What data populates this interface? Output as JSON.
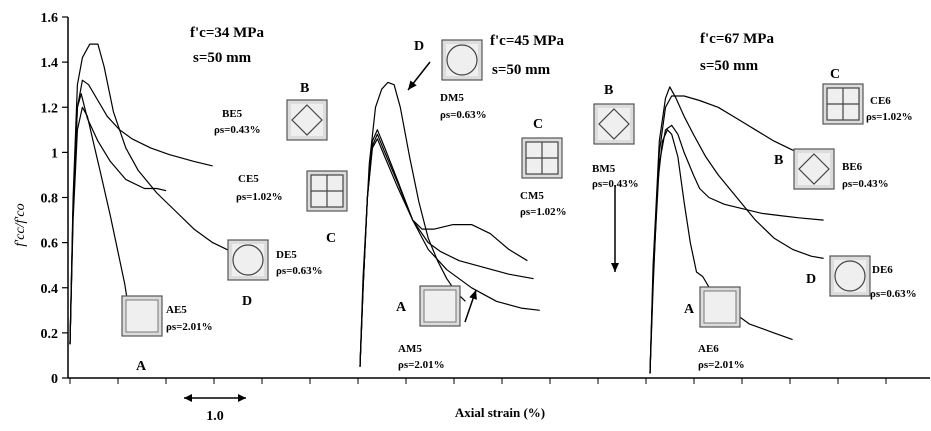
{
  "chart_data": {
    "type": "line",
    "ylabel": "f'cc/f'co",
    "xlabel": "Axial strain (%)",
    "ylim": [
      0,
      1.6
    ],
    "yticks": [
      "0",
      "0.2",
      "0.4",
      "0.6",
      "0.8",
      "1",
      "1.2",
      "1.4",
      "1.6"
    ],
    "scale_label": "1.0",
    "grid": false,
    "legend": "none",
    "panels": [
      {
        "title": "f'c=34 MPa",
        "subtitle": "s=50 mm",
        "series": [
          {
            "letter": "A",
            "name": "AE5",
            "ratio": "ρs=2.01%",
            "points": [
              [
                0,
                0.15
              ],
              [
                0.05,
                0.7
              ],
              [
                0.12,
                1.1
              ],
              [
                0.2,
                1.2
              ],
              [
                0.28,
                1.16
              ],
              [
                0.38,
                1.04
              ],
              [
                0.5,
                0.9
              ],
              [
                0.65,
                0.72
              ],
              [
                0.78,
                0.55
              ],
              [
                0.88,
                0.42
              ],
              [
                0.95,
                0.3
              ]
            ]
          },
          {
            "letter": "B",
            "name": "BE5",
            "ratio": "ρs=0.43%",
            "points": [
              [
                0,
                0.15
              ],
              [
                0.05,
                0.75
              ],
              [
                0.12,
                1.2
              ],
              [
                0.2,
                1.32
              ],
              [
                0.3,
                1.3
              ],
              [
                0.45,
                1.23
              ],
              [
                0.6,
                1.16
              ],
              [
                0.8,
                1.1
              ],
              [
                1.0,
                1.06
              ],
              [
                1.3,
                1.02
              ],
              [
                1.6,
                0.99
              ],
              [
                2.0,
                0.96
              ],
              [
                2.3,
                0.94
              ]
            ]
          },
          {
            "letter": "C",
            "name": "CE5",
            "ratio": "ρs=1.02%",
            "points": [
              [
                0,
                0.15
              ],
              [
                0.05,
                0.75
              ],
              [
                0.12,
                1.2
              ],
              [
                0.18,
                1.26
              ],
              [
                0.28,
                1.15
              ],
              [
                0.45,
                1.05
              ],
              [
                0.65,
                0.96
              ],
              [
                0.9,
                0.88
              ],
              [
                1.2,
                0.84
              ],
              [
                1.4,
                0.84
              ],
              [
                1.55,
                0.83
              ]
            ]
          },
          {
            "letter": "D",
            "name": "DE5",
            "ratio": "ρs=0.63%",
            "points": [
              [
                0,
                0.15
              ],
              [
                0.05,
                0.8
              ],
              [
                0.12,
                1.3
              ],
              [
                0.2,
                1.42
              ],
              [
                0.32,
                1.48
              ],
              [
                0.45,
                1.48
              ],
              [
                0.55,
                1.38
              ],
              [
                0.7,
                1.18
              ],
              [
                0.9,
                1.02
              ],
              [
                1.1,
                0.92
              ],
              [
                1.4,
                0.82
              ],
              [
                1.7,
                0.74
              ],
              [
                2.0,
                0.66
              ],
              [
                2.3,
                0.6
              ],
              [
                2.6,
                0.56
              ],
              [
                2.8,
                0.55
              ]
            ]
          }
        ]
      },
      {
        "title": "f'c=45 MPa",
        "subtitle": "s=50 mm",
        "series": [
          {
            "letter": "A",
            "name": "AM5",
            "ratio": "ρs=2.01%",
            "points": [
              [
                0,
                0.05
              ],
              [
                0.05,
                0.4
              ],
              [
                0.12,
                0.8
              ],
              [
                0.2,
                1.05
              ],
              [
                0.28,
                1.1
              ],
              [
                0.4,
                1.02
              ],
              [
                0.6,
                0.88
              ],
              [
                0.85,
                0.7
              ],
              [
                1.1,
                0.57
              ],
              [
                1.4,
                0.48
              ],
              [
                1.8,
                0.4
              ],
              [
                2.2,
                0.34
              ],
              [
                2.6,
                0.31
              ],
              [
                2.9,
                0.3
              ]
            ]
          },
          {
            "letter": "B",
            "name": "BM5",
            "ratio": "ρs=0.43%",
            "points": [
              [
                0,
                0.05
              ],
              [
                0.05,
                0.4
              ],
              [
                0.12,
                0.8
              ],
              [
                0.2,
                1.02
              ],
              [
                0.28,
                1.06
              ],
              [
                0.4,
                0.98
              ],
              [
                0.6,
                0.85
              ],
              [
                0.85,
                0.7
              ],
              [
                1.0,
                0.66
              ],
              [
                1.2,
                0.66
              ],
              [
                1.5,
                0.68
              ],
              [
                1.8,
                0.68
              ],
              [
                2.1,
                0.64
              ],
              [
                2.4,
                0.57
              ],
              [
                2.7,
                0.52
              ]
            ]
          },
          {
            "letter": "C",
            "name": "CM5",
            "ratio": "ρs=1.02%",
            "points": [
              [
                0,
                0.05
              ],
              [
                0.05,
                0.4
              ],
              [
                0.12,
                0.8
              ],
              [
                0.2,
                1.03
              ],
              [
                0.28,
                1.08
              ],
              [
                0.4,
                1.0
              ],
              [
                0.6,
                0.87
              ],
              [
                0.85,
                0.7
              ],
              [
                1.1,
                0.6
              ],
              [
                1.3,
                0.56
              ],
              [
                1.6,
                0.52
              ],
              [
                2.0,
                0.49
              ],
              [
                2.4,
                0.46
              ],
              [
                2.8,
                0.44
              ]
            ]
          },
          {
            "letter": "D",
            "name": "DM5",
            "ratio": "ρs=0.63%",
            "points": [
              [
                0,
                0.05
              ],
              [
                0.05,
                0.45
              ],
              [
                0.15,
                0.95
              ],
              [
                0.25,
                1.2
              ],
              [
                0.35,
                1.28
              ],
              [
                0.45,
                1.31
              ],
              [
                0.55,
                1.3
              ],
              [
                0.65,
                1.2
              ],
              [
                0.8,
                0.98
              ],
              [
                0.95,
                0.78
              ],
              [
                1.1,
                0.62
              ],
              [
                1.25,
                0.52
              ],
              [
                1.4,
                0.44
              ],
              [
                1.55,
                0.38
              ],
              [
                1.7,
                0.34
              ]
            ]
          }
        ]
      },
      {
        "title": "f'c=67 MPa",
        "subtitle": "s=50 mm",
        "series": [
          {
            "letter": "A",
            "name": "AE6",
            "ratio": "ρs=2.01%",
            "points": [
              [
                0,
                0.02
              ],
              [
                0.05,
                0.4
              ],
              [
                0.12,
                0.85
              ],
              [
                0.2,
                1.05
              ],
              [
                0.28,
                1.1
              ],
              [
                0.35,
                1.08
              ],
              [
                0.45,
                0.98
              ],
              [
                0.55,
                0.78
              ],
              [
                0.65,
                0.6
              ],
              [
                0.75,
                0.47
              ],
              [
                0.85,
                0.45
              ],
              [
                1.0,
                0.38
              ],
              [
                1.3,
                0.3
              ],
              [
                1.6,
                0.24
              ],
              [
                2.0,
                0.2
              ],
              [
                2.3,
                0.17
              ]
            ]
          },
          {
            "letter": "B",
            "name": "BE6",
            "ratio": "ρs=0.43%",
            "points": [
              [
                0,
                0.02
              ],
              [
                0.05,
                0.45
              ],
              [
                0.15,
                0.95
              ],
              [
                0.25,
                1.1
              ],
              [
                0.35,
                1.12
              ],
              [
                0.45,
                1.08
              ],
              [
                0.55,
                1.0
              ],
              [
                0.7,
                0.9
              ],
              [
                0.8,
                0.84
              ],
              [
                0.95,
                0.8
              ],
              [
                1.2,
                0.77
              ],
              [
                1.5,
                0.75
              ],
              [
                1.8,
                0.73
              ],
              [
                2.1,
                0.72
              ],
              [
                2.4,
                0.71
              ],
              [
                2.8,
                0.7
              ]
            ]
          },
          {
            "letter": "C",
            "name": "CE6",
            "ratio": "ρs=1.02%",
            "points": [
              [
                0,
                0.02
              ],
              [
                0.05,
                0.45
              ],
              [
                0.15,
                1.0
              ],
              [
                0.25,
                1.2
              ],
              [
                0.35,
                1.25
              ],
              [
                0.55,
                1.25
              ],
              [
                0.8,
                1.23
              ],
              [
                1.1,
                1.2
              ],
              [
                1.4,
                1.15
              ],
              [
                1.7,
                1.1
              ],
              [
                2.0,
                1.05
              ],
              [
                2.3,
                1.01
              ],
              [
                2.6,
                0.99
              ],
              [
                2.8,
                0.98
              ]
            ]
          },
          {
            "letter": "D",
            "name": "DE6",
            "ratio": "ρs=0.63%",
            "points": [
              [
                0,
                0.02
              ],
              [
                0.05,
                0.5
              ],
              [
                0.15,
                1.05
              ],
              [
                0.25,
                1.24
              ],
              [
                0.32,
                1.29
              ],
              [
                0.42,
                1.24
              ],
              [
                0.55,
                1.16
              ],
              [
                0.7,
                1.08
              ],
              [
                0.9,
                0.98
              ],
              [
                1.1,
                0.9
              ],
              [
                1.4,
                0.8
              ],
              [
                1.7,
                0.7
              ],
              [
                2.0,
                0.62
              ],
              [
                2.3,
                0.57
              ],
              [
                2.6,
                0.54
              ],
              [
                2.8,
                0.53
              ]
            ]
          }
        ]
      }
    ]
  }
}
